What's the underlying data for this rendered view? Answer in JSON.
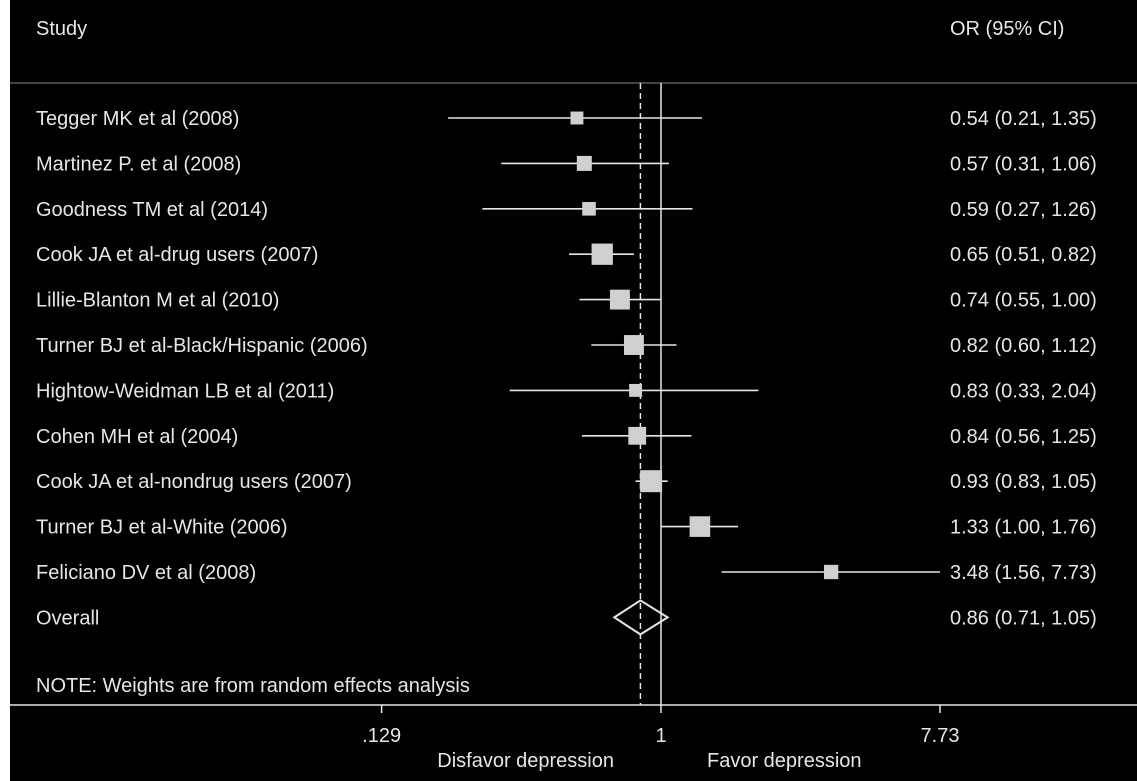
{
  "chart_data": {
    "type": "forest",
    "header": {
      "study": "Study",
      "estimate": "OR (95% CI)"
    },
    "studies": [
      {
        "label": "Tegger MK et al (2008)",
        "or": 0.54,
        "lo": 0.21,
        "hi": 1.35,
        "ci_text": "0.54 (0.21, 1.35)",
        "weight_box": 0.35
      },
      {
        "label": "Martinez P. et al (2008)",
        "or": 0.57,
        "lo": 0.31,
        "hi": 1.06,
        "ci_text": "0.57 (0.31, 1.06)",
        "weight_box": 0.5
      },
      {
        "label": "Goodness TM et al (2014)",
        "or": 0.59,
        "lo": 0.27,
        "hi": 1.26,
        "ci_text": "0.59 (0.27, 1.26)",
        "weight_box": 0.4
      },
      {
        "label": "Cook JA et al-drug users (2007)",
        "or": 0.65,
        "lo": 0.51,
        "hi": 0.82,
        "ci_text": "0.65 (0.51, 0.82)",
        "weight_box": 0.95
      },
      {
        "label": "Lillie-Blanton M et al (2010)",
        "or": 0.74,
        "lo": 0.55,
        "hi": 1.0,
        "ci_text": "0.74 (0.55, 1.00)",
        "weight_box": 0.85
      },
      {
        "label": "Turner BJ et al-Black/Hispanic (2006)",
        "or": 0.82,
        "lo": 0.6,
        "hi": 1.12,
        "ci_text": "0.82 (0.60, 1.12)",
        "weight_box": 0.85
      },
      {
        "label": "Hightow-Weidman LB et al (2011)",
        "or": 0.83,
        "lo": 0.33,
        "hi": 2.04,
        "ci_text": "0.83 (0.33, 2.04)",
        "weight_box": 0.35
      },
      {
        "label": "Cohen MH et al (2004)",
        "or": 0.84,
        "lo": 0.56,
        "hi": 1.25,
        "ci_text": "0.84 (0.56, 1.25)",
        "weight_box": 0.7
      },
      {
        "label": "Cook JA et al-nondrug users (2007)",
        "or": 0.93,
        "lo": 0.83,
        "hi": 1.05,
        "ci_text": "0.93 (0.83, 1.05)",
        "weight_box": 1.0
      },
      {
        "label": "Turner BJ et al-White (2006)",
        "or": 1.33,
        "lo": 1.0,
        "hi": 1.76,
        "ci_text": "1.33 (1.00, 1.76)",
        "weight_box": 0.9
      },
      {
        "label": "Feliciano DV et al (2008)",
        "or": 3.48,
        "lo": 1.56,
        "hi": 7.73,
        "ci_text": "3.48 (1.56, 7.73)",
        "weight_box": 0.45
      }
    ],
    "overall": {
      "label": "Overall",
      "or": 0.86,
      "lo": 0.71,
      "hi": 1.05,
      "ci_text": "0.86 (0.71, 1.05)"
    },
    "note": "NOTE: Weights are from random effects analysis",
    "x_axis": {
      "scale": "log",
      "ticks": [
        {
          "value": 0.129,
          "label": ".129"
        },
        {
          "value": 1,
          "label": "1"
        },
        {
          "value": 7.73,
          "label": "7.73"
        }
      ],
      "left_label": "Disfavor depression",
      "right_label": "Favor depression"
    },
    "reference_line": 1,
    "overall_line": 0.86,
    "colors": {
      "background": "#000000",
      "foreground": "#e6e6e6",
      "box": "#d0d0d0"
    }
  }
}
